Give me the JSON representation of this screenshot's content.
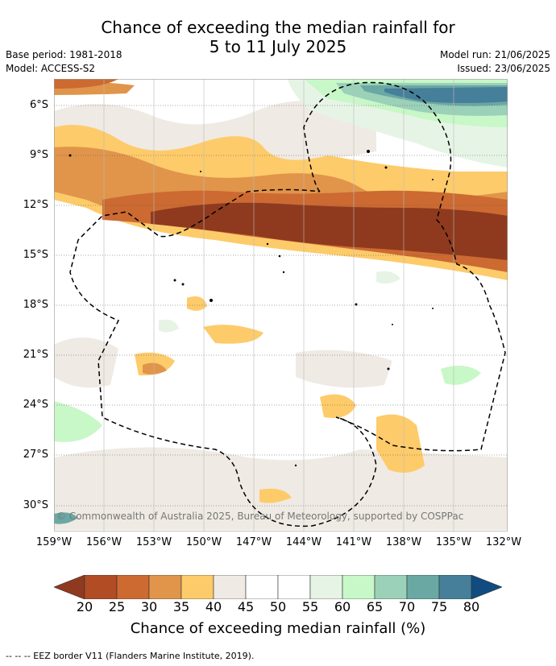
{
  "title_line1": "Chance of exceeding the median rainfall for",
  "title_line2": "5 to 11 July 2025",
  "meta": {
    "base_period": "Base period: 1981-2018",
    "model": "Model: ACCESS-S2",
    "model_run": "Model run: 21/06/2025",
    "issued": "Issued: 23/06/2025"
  },
  "lat_labels": [
    "6°S",
    "9°S",
    "12°S",
    "15°S",
    "18°S",
    "21°S",
    "24°S",
    "27°S",
    "30°S"
  ],
  "lon_labels": [
    "159°W",
    "156°W",
    "153°W",
    "150°W",
    "147°W",
    "144°W",
    "141°W",
    "138°W",
    "135°W",
    "132°W"
  ],
  "copyright": "© Commonwealth of Australia 2025, Bureau of Meteorology, supported by COSPPac",
  "colorbar": {
    "ticks": [
      "20",
      "25",
      "30",
      "35",
      "40",
      "45",
      "50",
      "55",
      "60",
      "65",
      "70",
      "75",
      "80"
    ],
    "colors": [
      "#8f3a1e",
      "#b24c25",
      "#cc6a32",
      "#e0954a",
      "#fdcb6a",
      "#efeae3",
      "#ffffff",
      "#ffffff",
      "#e6f4e6",
      "#c8f7c8",
      "#9bd1b8",
      "#6aa8a4",
      "#467f99",
      "#114c80"
    ],
    "label": "Chance of exceeding median rainfall (%)"
  },
  "footnote": "--  --  -- EEZ border V11 (Flanders Marine Institute, 2019)."
}
